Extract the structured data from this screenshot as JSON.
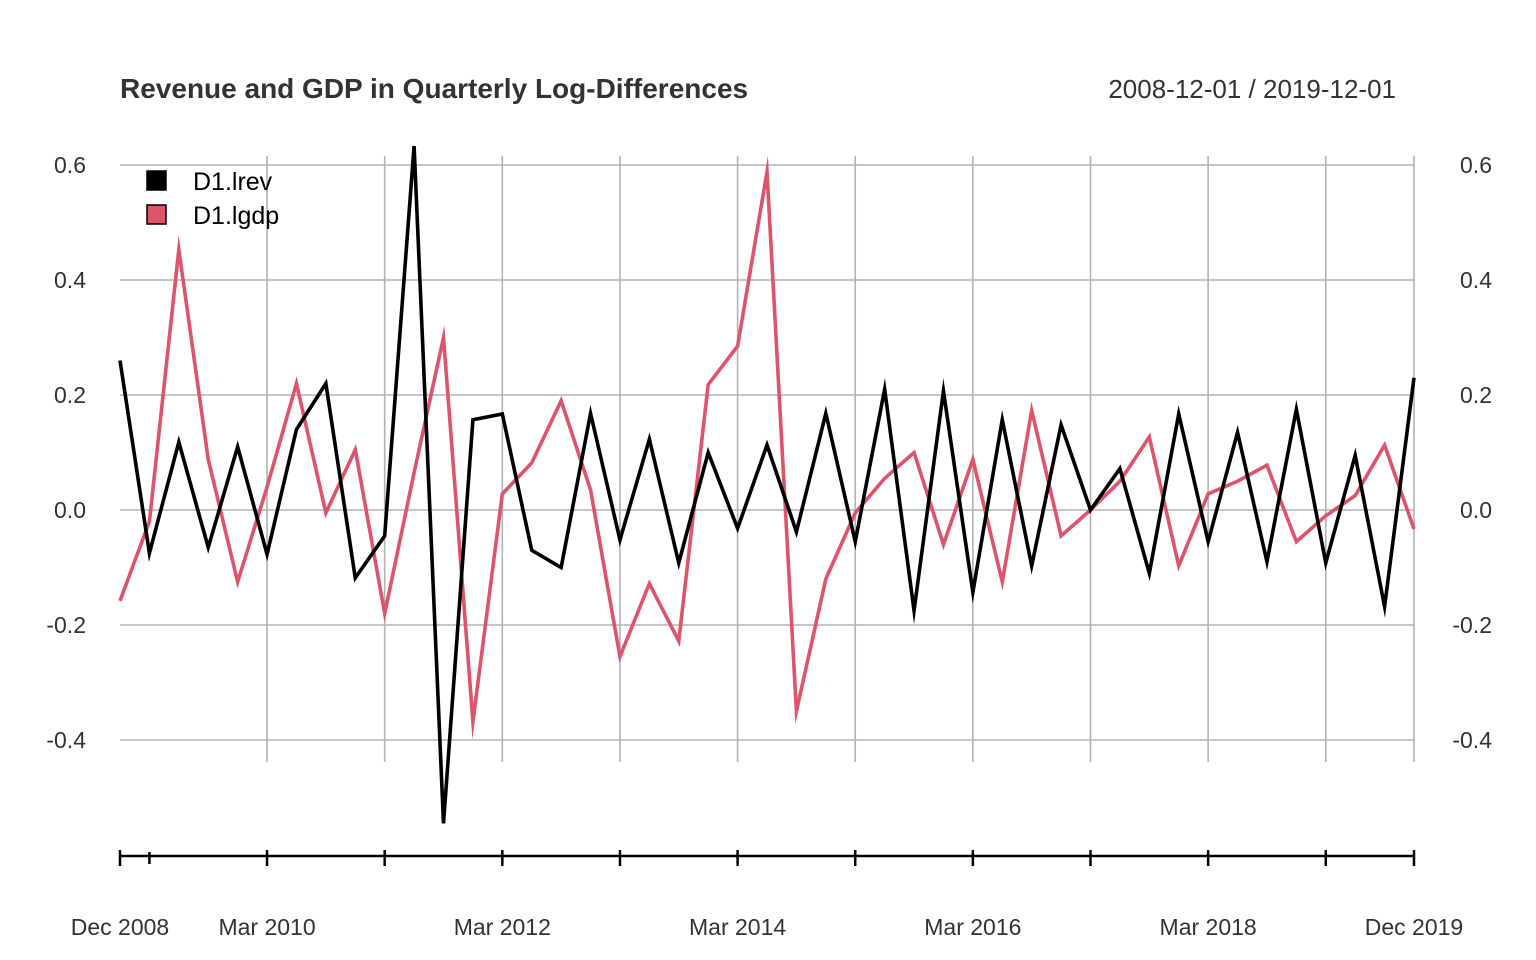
{
  "chart_data": {
    "type": "line",
    "title": "Revenue and GDP in Quarterly Log-Differences",
    "date_range_label": "2008-12-01 / 2019-12-01",
    "xlabel": "",
    "ylabel": "",
    "x": [
      "2008-12",
      "2009-03",
      "2009-06",
      "2009-09",
      "2009-12",
      "2010-03",
      "2010-06",
      "2010-09",
      "2010-12",
      "2011-03",
      "2011-06",
      "2011-09",
      "2011-12",
      "2012-03",
      "2012-06",
      "2012-09",
      "2012-12",
      "2013-03",
      "2013-06",
      "2013-09",
      "2013-12",
      "2014-03",
      "2014-06",
      "2014-09",
      "2014-12",
      "2015-03",
      "2015-06",
      "2015-09",
      "2015-12",
      "2016-03",
      "2016-06",
      "2016-09",
      "2016-12",
      "2017-03",
      "2017-06",
      "2017-09",
      "2017-12",
      "2018-03",
      "2018-06",
      "2018-09",
      "2018-12",
      "2019-03",
      "2019-06",
      "2019-09",
      "2019-12"
    ],
    "x_tick_labels": [
      "Dec 2008",
      "Mar 2010",
      "Mar 2012",
      "Mar 2014",
      "Mar 2016",
      "Mar 2018",
      "Dec 2019"
    ],
    "y_ticks": [
      -0.4,
      -0.2,
      0.0,
      0.2,
      0.4,
      0.6
    ],
    "y_tick_labels": [
      "-0.4",
      "-0.2",
      "0.0",
      "0.2",
      "0.4",
      "0.6"
    ],
    "ylim": [
      -0.55,
      0.63
    ],
    "grid": true,
    "legend_position": "top-left",
    "series": [
      {
        "name": "D1.lrev",
        "color": "#000000",
        "values": [
          0.26,
          -0.075,
          0.118,
          -0.065,
          0.11,
          -0.077,
          0.14,
          0.22,
          -0.118,
          -0.045,
          0.633,
          -0.545,
          0.157,
          0.167,
          -0.07,
          -0.1,
          0.168,
          -0.052,
          0.123,
          -0.092,
          0.1,
          -0.032,
          0.113,
          -0.038,
          0.168,
          -0.055,
          0.21,
          -0.175,
          0.207,
          -0.143,
          0.157,
          -0.097,
          0.148,
          0.0,
          0.072,
          -0.11,
          0.167,
          -0.055,
          0.135,
          -0.09,
          0.175,
          -0.092,
          0.095,
          -0.168,
          0.23
        ]
      },
      {
        "name": "D1.lgdp",
        "color": "#df536b",
        "values": [
          -0.158,
          -0.02,
          0.453,
          0.088,
          -0.125,
          0.04,
          0.22,
          -0.005,
          0.105,
          -0.18,
          0.065,
          0.3,
          -0.368,
          0.028,
          0.082,
          0.19,
          0.035,
          -0.255,
          -0.128,
          -0.228,
          0.218,
          0.285,
          0.588,
          -0.35,
          -0.12,
          -0.005,
          0.055,
          0.1,
          -0.06,
          0.088,
          -0.125,
          0.173,
          -0.045,
          0.0,
          0.05,
          0.127,
          -0.097,
          0.028,
          0.05,
          0.078,
          -0.055,
          -0.01,
          0.025,
          0.113,
          -0.033
        ]
      }
    ]
  }
}
